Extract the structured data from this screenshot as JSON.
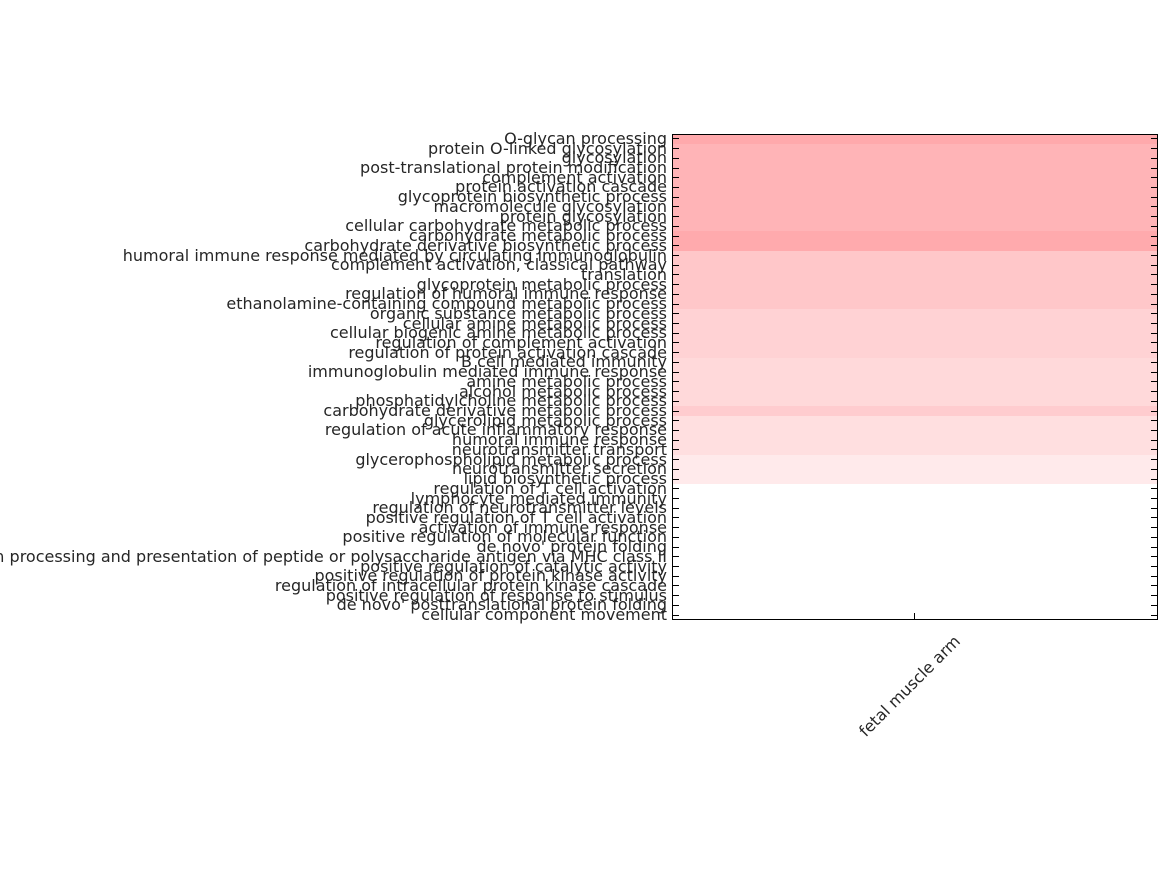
{
  "figure": {
    "background": "#ffffff",
    "spine_color": "#000000",
    "tick_color": "#000000",
    "label_color": "#262626"
  },
  "chart_data": {
    "type": "heatmap",
    "title": "",
    "xlabel": "",
    "ylabel": "",
    "legend": "none",
    "grid": false,
    "x_categories": [
      "fetal muscle arm"
    ],
    "x_tick_rotation": 45,
    "y_categories": [
      "O-glycan processing",
      "protein O-linked glycosylation",
      "glycosylation",
      "post-translational protein modification",
      "complement activation",
      "protein activation cascade",
      "glycoprotein biosynthetic process",
      "macromolecule glycosylation",
      "protein glycosylation",
      "cellular carbohydrate metabolic process",
      "carbohydrate metabolic process",
      "carbohydrate derivative biosynthetic process",
      "humoral immune response mediated by circulating immunoglobulin",
      "complement activation, classical pathway",
      "translation",
      "glycoprotein metabolic process",
      "regulation of humoral immune response",
      "ethanolamine-containing compound metabolic process",
      "organic substance metabolic process",
      "cellular amine metabolic process",
      "cellular biogenic amine metabolic process",
      "regulation of complement activation",
      "regulation of protein activation cascade",
      "B cell mediated immunity",
      "immunoglobulin mediated immune response",
      "amine metabolic process",
      "alcohol metabolic process",
      "phosphatidylcholine metabolic process",
      "carbohydrate derivative metabolic process",
      "glycerolipid metabolic process",
      "regulation of acute inflammatory response",
      "humoral immune response",
      "neurotransmitter transport",
      "glycerophospholipid metabolic process",
      "neurotransmitter secretion",
      "lipid biosynthetic process",
      "regulation of T cell activation",
      "lymphocyte mediated immunity",
      "regulation of neurotransmitter levels",
      "positive regulation of T cell activation",
      "activation of immune response",
      "positive regulation of molecular function",
      "de novo' protein folding",
      "antigen processing and presentation of peptide or polysaccharide antigen via MHC class II",
      "positive regulation of catalytic activity",
      "positive regulation of protein kinase activity",
      "regulation of intracellular protein kinase cascade",
      "positive regulation of response to stimulus",
      "de novo' posttranslational protein folding",
      "cellular component movement"
    ],
    "series": [
      {
        "name": "fetal muscle arm",
        "values_estimated_intensity_0to1": [
          0.34,
          0.29,
          0.29,
          0.29,
          0.29,
          0.29,
          0.29,
          0.29,
          0.29,
          0.29,
          0.33,
          0.33,
          0.22,
          0.22,
          0.22,
          0.22,
          0.22,
          0.22,
          0.18,
          0.18,
          0.18,
          0.18,
          0.18,
          0.15,
          0.15,
          0.15,
          0.15,
          0.15,
          0.2,
          0.12,
          0.12,
          0.12,
          0.12,
          0.08,
          0.08,
          0.08,
          0.0,
          0.0,
          0.0,
          0.0,
          0.0,
          0.0,
          0.0,
          0.0,
          0.0,
          0.0,
          0.0,
          0.0,
          0.0,
          0.0
        ],
        "cell_colors": [
          "#ffa9ac",
          "#ffb4b7",
          "#ffb4b7",
          "#ffb4b7",
          "#ffb4b7",
          "#ffb4b7",
          "#ffb4b7",
          "#ffb4b7",
          "#ffb4b7",
          "#ffb4b7",
          "#ffaaad",
          "#ffaaad",
          "#ffc7c9",
          "#ffc7c9",
          "#ffc7c9",
          "#ffc7c9",
          "#ffc7c9",
          "#ffc7c9",
          "#ffd2d4",
          "#ffd2d4",
          "#ffd2d4",
          "#ffd2d4",
          "#ffd2d4",
          "#ffd9da",
          "#ffd9da",
          "#ffd9da",
          "#ffd9da",
          "#ffd9da",
          "#ffcccf",
          "#ffdfe0",
          "#ffdfe0",
          "#ffdfe0",
          "#ffdfe0",
          "#ffeaeb",
          "#ffeaeb",
          "#ffeaeb",
          "#ffffff",
          "#ffffff",
          "#ffffff",
          "#ffffff",
          "#ffffff",
          "#ffffff",
          "#ffffff",
          "#ffffff",
          "#ffffff",
          "#ffffff",
          "#ffffff",
          "#ffffff",
          "#ffffff",
          "#ffffff"
        ]
      }
    ],
    "colormap": "white-to-red",
    "value_range": [
      0,
      1
    ]
  }
}
